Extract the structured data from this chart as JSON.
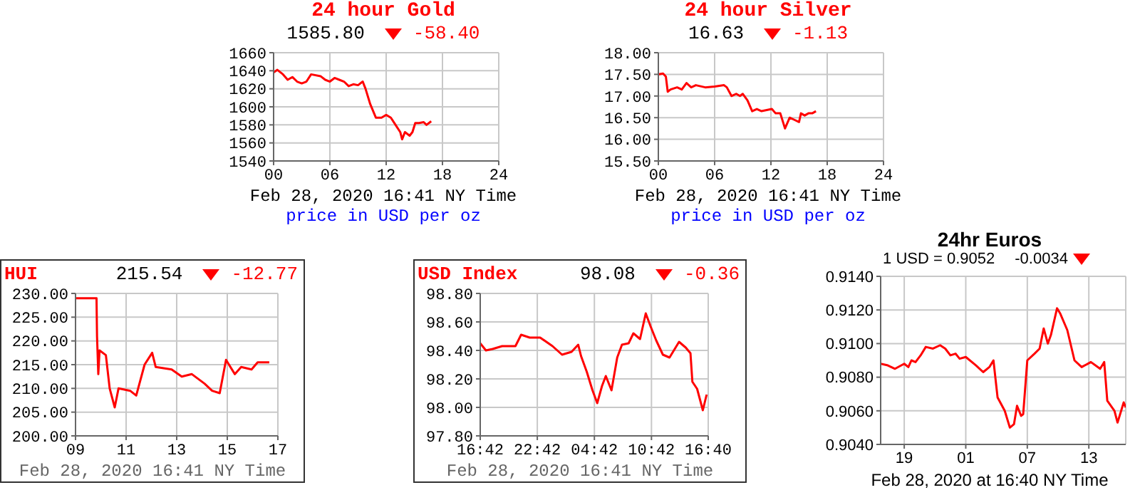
{
  "chart_data": [
    {
      "type": "line",
      "title": "24 hour Gold",
      "annotations": [
        "1585.80",
        "-58.40",
        "Feb 28, 2020 16:41 NY Time",
        "price in USD per oz"
      ],
      "grid": true,
      "x": [
        0,
        0.4,
        1,
        1.5,
        2,
        2.5,
        3,
        3.5,
        4,
        5,
        5.5,
        6,
        6.5,
        7,
        7.5,
        8,
        8.5,
        9,
        9.5,
        9.8,
        10.3,
        10.9,
        11.5,
        12,
        12.5,
        13,
        13.5,
        13.7,
        14,
        14.5,
        14.8,
        15.1,
        15.5,
        16,
        16.3,
        16.8
      ],
      "series": [
        {
          "color": "#ff0000",
          "values": [
            1638,
            1641,
            1636,
            1630,
            1633,
            1628,
            1626,
            1628,
            1636,
            1634,
            1630,
            1628,
            1632,
            1630,
            1628,
            1623,
            1625,
            1624,
            1628,
            1620,
            1603,
            1588,
            1588,
            1591,
            1588,
            1580,
            1572,
            1564,
            1572,
            1568,
            1572,
            1582,
            1582,
            1583,
            1580,
            1584
          ]
        }
      ],
      "xlim": [
        0,
        24
      ],
      "xticks": [
        {
          "value": 0,
          "label": "00"
        },
        {
          "value": 6,
          "label": "06"
        },
        {
          "value": 12,
          "label": "12"
        },
        {
          "value": 18,
          "label": "18"
        },
        {
          "value": 24,
          "label": "24"
        }
      ],
      "ylim": [
        1540,
        1660
      ],
      "yticks": [
        1540,
        1560,
        1580,
        1600,
        1620,
        1640,
        1660
      ]
    },
    {
      "type": "line",
      "title": "24 hour Silver",
      "annotations": [
        "16.63",
        "-1.13",
        "Feb 28, 2020 16:41 NY Time",
        "price in USD per oz"
      ],
      "grid": true,
      "x": [
        0,
        0.5,
        0.8,
        1,
        1.3,
        2,
        2.5,
        3,
        3.5,
        4,
        5,
        6,
        7,
        7.3,
        7.8,
        8.3,
        8.7,
        9,
        9.5,
        10,
        10.5,
        11,
        12.1,
        12.5,
        13,
        13.5,
        14,
        14.5,
        15,
        15.2,
        15.6,
        16,
        16.4,
        16.8
      ],
      "series": [
        {
          "color": "#ff0000",
          "values": [
            17.5,
            17.52,
            17.45,
            17.1,
            17.15,
            17.2,
            17.15,
            17.3,
            17.2,
            17.25,
            17.2,
            17.22,
            17.25,
            17.2,
            17.0,
            17.05,
            17.0,
            17.05,
            16.9,
            16.65,
            16.7,
            16.65,
            16.7,
            16.6,
            16.6,
            16.25,
            16.5,
            16.45,
            16.4,
            16.6,
            16.55,
            16.6,
            16.6,
            16.65
          ]
        }
      ],
      "xlim": [
        0,
        24
      ],
      "xticks": [
        {
          "value": 0,
          "label": "00"
        },
        {
          "value": 6,
          "label": "06"
        },
        {
          "value": 12,
          "label": "12"
        },
        {
          "value": 18,
          "label": "18"
        },
        {
          "value": 24,
          "label": "24"
        }
      ],
      "ylim": [
        15.5,
        18
      ],
      "yticks": [
        {
          "value": 15.5,
          "label": "15.50"
        },
        {
          "value": 16,
          "label": "16.00"
        },
        {
          "value": 16.5,
          "label": "16.50"
        },
        {
          "value": 17,
          "label": "17.00"
        },
        {
          "value": 17.5,
          "label": "17.50"
        },
        {
          "value": 18,
          "label": "18.00"
        }
      ]
    },
    {
      "type": "line",
      "title": "HUI",
      "annotations": [
        "215.54",
        "-12.77",
        "Feb 28, 2020 16:41 NY Time"
      ],
      "grid": true,
      "x": [
        9,
        9.83,
        9.85,
        9.9,
        9.95,
        10.2,
        10.35,
        10.55,
        10.7,
        11.16,
        11.4,
        11.73,
        12.03,
        12.17,
        12.8,
        13.2,
        13.6,
        14.1,
        14.4,
        14.7,
        14.95,
        15.3,
        15.55,
        15.96,
        16.2,
        16.66
      ],
      "series": [
        {
          "color": "#ff0000",
          "values": [
            229,
            229,
            221,
            213,
            218,
            217,
            210,
            206,
            210,
            209.5,
            208.5,
            215,
            217.5,
            214.5,
            214,
            212.5,
            213,
            211,
            209.5,
            209,
            216,
            213,
            214.5,
            214,
            215.5,
            215.5
          ]
        }
      ],
      "xlim": [
        9,
        17
      ],
      "xticks": [
        {
          "value": 9,
          "label": "09"
        },
        {
          "value": 11,
          "label": "11"
        },
        {
          "value": 13,
          "label": "13"
        },
        {
          "value": 15,
          "label": "15"
        },
        {
          "value": 17,
          "label": "17"
        }
      ],
      "ylim": [
        200,
        230
      ],
      "yticks": [
        {
          "value": 200,
          "label": "200.00"
        },
        {
          "value": 205,
          "label": "205.00"
        },
        {
          "value": 210,
          "label": "210.00"
        },
        {
          "value": 215,
          "label": "215.00"
        },
        {
          "value": 220,
          "label": "220.00"
        },
        {
          "value": 225,
          "label": "225.00"
        },
        {
          "value": 230,
          "label": "230.00"
        }
      ]
    },
    {
      "type": "line",
      "title": "USD Index",
      "annotations": [
        "98.08",
        "-0.36",
        "Feb 28, 2020 16:41 NY Time"
      ],
      "grid": true,
      "x": [
        "2020-02-27T16:42",
        "2020-02-27T17:18",
        "2020-02-27T18:00",
        "2020-02-27T19:00",
        "2020-02-27T20:24",
        "2020-02-27T21:00",
        "2020-02-27T21:54",
        "2020-02-27T23:00",
        "2020-02-28T00:18",
        "2020-02-28T01:18",
        "2020-02-28T02:18",
        "2020-02-28T03:00",
        "2020-02-28T03:18",
        "2020-02-28T03:54",
        "2020-02-28T04:30",
        "2020-02-28T05:00",
        "2020-02-28T05:30",
        "2020-02-28T05:54",
        "2020-02-28T06:30",
        "2020-02-28T07:06",
        "2020-02-28T07:36",
        "2020-02-28T08:18",
        "2020-02-28T08:48",
        "2020-02-28T09:30",
        "2020-02-28T10:06",
        "2020-02-28T10:36",
        "2020-02-28T11:12",
        "2020-02-28T11:54",
        "2020-02-28T12:36",
        "2020-02-28T13:36",
        "2020-02-28T14:18",
        "2020-02-28T14:48",
        "2020-02-28T15:00",
        "2020-02-28T15:30",
        "2020-02-28T16:06",
        "2020-02-28T16:30"
      ],
      "series": [
        {
          "color": "#ff0000",
          "values": [
            98.45,
            98.4,
            98.41,
            98.43,
            98.43,
            98.51,
            98.49,
            98.49,
            98.43,
            98.37,
            98.39,
            98.44,
            98.36,
            98.25,
            98.12,
            98.03,
            98.15,
            98.22,
            98.12,
            98.35,
            98.44,
            98.45,
            98.52,
            98.48,
            98.66,
            98.57,
            98.47,
            98.37,
            98.35,
            98.46,
            98.42,
            98.38,
            98.18,
            98.13,
            97.98,
            98.09
          ]
        }
      ],
      "xlim": [
        "2020-02-27T16:42",
        "2020-02-28T16:40"
      ],
      "xticks": [
        {
          "value": "2020-02-27T16:42",
          "label": "16:42"
        },
        {
          "value": "2020-02-27T22:42",
          "label": "22:42"
        },
        {
          "value": "2020-02-28T04:42",
          "label": "04:42"
        },
        {
          "value": "2020-02-28T10:42",
          "label": "10:42"
        },
        {
          "value": "2020-02-28T16:40",
          "label": "16:40"
        }
      ],
      "ylim": [
        97.8,
        98.8
      ],
      "yticks": [
        {
          "value": 97.8,
          "label": "97.80"
        },
        {
          "value": 98,
          "label": "98.00"
        },
        {
          "value": 98.2,
          "label": "98.20"
        },
        {
          "value": 98.4,
          "label": "98.40"
        },
        {
          "value": 98.6,
          "label": "98.60"
        },
        {
          "value": 98.8,
          "label": "98.80"
        }
      ]
    },
    {
      "type": "line",
      "title": "24hr Euros",
      "annotations": [
        "1 USD = 0.9052",
        "-0.0034",
        "Feb 28, 2020 at 16:40 NY Time"
      ],
      "grid": true,
      "x": [
        "2020-02-27T16:42",
        "2020-02-27T17:24",
        "2020-02-27T18:06",
        "2020-02-27T19:00",
        "2020-02-27T19:24",
        "2020-02-27T19:42",
        "2020-02-27T20:06",
        "2020-02-27T20:36",
        "2020-02-27T21:06",
        "2020-02-27T21:48",
        "2020-02-27T22:30",
        "2020-02-27T23:00",
        "2020-02-27T23:30",
        "2020-02-28T00:00",
        "2020-02-28T00:24",
        "2020-02-28T01:00",
        "2020-02-28T02:00",
        "2020-02-28T02:42",
        "2020-02-28T03:18",
        "2020-02-28T03:42",
        "2020-02-28T04:06",
        "2020-02-28T04:48",
        "2020-02-28T05:18",
        "2020-02-28T05:42",
        "2020-02-28T06:00",
        "2020-02-28T06:24",
        "2020-02-28T06:36",
        "2020-02-28T07:00",
        "2020-02-28T07:42",
        "2020-02-28T08:12",
        "2020-02-28T08:36",
        "2020-02-28T09:00",
        "2020-02-28T09:18",
        "2020-02-28T09:54",
        "2020-02-28T10:12",
        "2020-02-28T10:54",
        "2020-02-28T11:36",
        "2020-02-28T12:18",
        "2020-02-28T13:12",
        "2020-02-28T14:06",
        "2020-02-28T14:30",
        "2020-02-28T14:48",
        "2020-02-28T15:30",
        "2020-02-28T15:48",
        "2020-02-28T16:24",
        "2020-02-28T16:36"
      ],
      "series": [
        {
          "color": "#ff0000",
          "values": [
            0.9088,
            0.9087,
            0.9085,
            0.9088,
            0.9086,
            0.909,
            0.9089,
            0.9093,
            0.9098,
            0.9097,
            0.9099,
            0.9097,
            0.9093,
            0.9094,
            0.9091,
            0.9092,
            0.9087,
            0.9083,
            0.9086,
            0.909,
            0.9068,
            0.906,
            0.905,
            0.9052,
            0.9063,
            0.9057,
            0.9058,
            0.909,
            0.9094,
            0.9097,
            0.9109,
            0.91,
            0.9105,
            0.9121,
            0.9118,
            0.9108,
            0.909,
            0.9086,
            0.9089,
            0.9085,
            0.9089,
            0.9066,
            0.906,
            0.9053,
            0.9065,
            0.9062
          ]
        }
      ],
      "xlim": [
        "2020-02-27T16:42",
        "2020-02-28T16:36"
      ],
      "xticks": [
        {
          "value": "2020-02-27T19:00",
          "label": "19"
        },
        {
          "value": "2020-02-28T01:00",
          "label": "01"
        },
        {
          "value": "2020-02-28T07:00",
          "label": "07"
        },
        {
          "value": "2020-02-28T13:00",
          "label": "13"
        }
      ],
      "ylim": [
        0.904,
        0.914
      ],
      "yticks": [
        {
          "value": 0.904,
          "label": "0.9040"
        },
        {
          "value": 0.906,
          "label": "0.9060"
        },
        {
          "value": 0.908,
          "label": "0.9080"
        },
        {
          "value": 0.91,
          "label": "0.9100"
        },
        {
          "value": 0.912,
          "label": "0.9120"
        },
        {
          "value": 0.914,
          "label": "0.9140"
        }
      ]
    }
  ]
}
